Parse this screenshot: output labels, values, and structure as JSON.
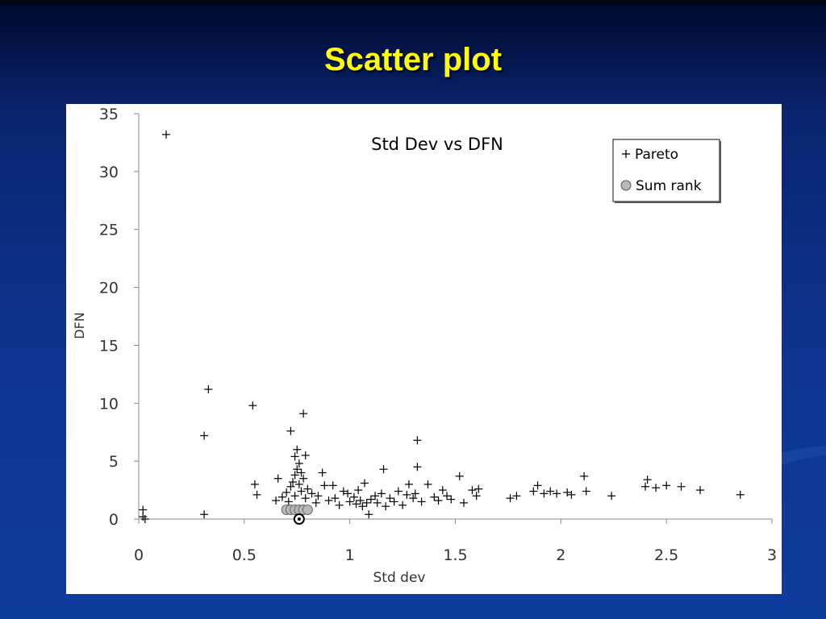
{
  "slide": {
    "title": "Scatter plot"
  },
  "chart_data": {
    "type": "scatter",
    "title": "Std Dev vs DFN",
    "xlabel": "Std dev",
    "ylabel": "DFN",
    "xlim": [
      0,
      3
    ],
    "ylim": [
      0,
      35
    ],
    "x_ticks": [
      0,
      0.5,
      1,
      1.5,
      2,
      2.5,
      3
    ],
    "x_tick_labels": [
      "0",
      "0.5",
      "1",
      "1.5",
      "2",
      "2.5",
      "3"
    ],
    "y_ticks": [
      0,
      5,
      10,
      15,
      20,
      25,
      30,
      35
    ],
    "y_tick_labels": [
      "0",
      "5",
      "10",
      "15",
      "20",
      "25",
      "30",
      "35"
    ],
    "grid": false,
    "legend_position": "top-right",
    "series": [
      {
        "name": "Pareto",
        "marker": "plus",
        "color": "#000000",
        "points": [
          [
            0.13,
            33.2
          ],
          [
            0.33,
            11.2
          ],
          [
            0.31,
            7.2
          ],
          [
            0.54,
            9.8
          ],
          [
            0.78,
            9.1
          ],
          [
            0.72,
            7.6
          ],
          [
            0.02,
            0.8
          ],
          [
            0.02,
            0.2
          ],
          [
            0.03,
            0.0
          ],
          [
            0.31,
            0.4
          ],
          [
            1.32,
            6.8
          ],
          [
            1.32,
            4.5
          ],
          [
            0.75,
            6.0
          ],
          [
            0.74,
            5.4
          ],
          [
            0.79,
            5.5
          ],
          [
            0.76,
            4.8
          ],
          [
            0.75,
            4.3
          ],
          [
            0.77,
            4.0
          ],
          [
            0.74,
            3.8
          ],
          [
            0.78,
            3.5
          ],
          [
            0.73,
            3.2
          ],
          [
            0.76,
            3.0
          ],
          [
            0.72,
            2.8
          ],
          [
            0.8,
            2.6
          ],
          [
            0.77,
            2.4
          ],
          [
            0.82,
            2.2
          ],
          [
            0.74,
            2.0
          ],
          [
            0.79,
            1.8
          ],
          [
            0.7,
            2.3
          ],
          [
            0.68,
            1.9
          ],
          [
            0.66,
            3.5
          ],
          [
            0.55,
            3.0
          ],
          [
            0.56,
            2.1
          ],
          [
            0.65,
            1.6
          ],
          [
            0.71,
            1.5
          ],
          [
            0.84,
            1.4
          ],
          [
            0.87,
            4.0
          ],
          [
            0.85,
            2.0
          ],
          [
            0.88,
            2.9
          ],
          [
            0.9,
            1.6
          ],
          [
            0.92,
            2.9
          ],
          [
            0.93,
            1.8
          ],
          [
            0.95,
            1.2
          ],
          [
            0.97,
            2.4
          ],
          [
            0.99,
            2.2
          ],
          [
            1.0,
            1.5
          ],
          [
            1.02,
            1.9
          ],
          [
            1.03,
            1.3
          ],
          [
            1.04,
            2.5
          ],
          [
            1.05,
            1.6
          ],
          [
            1.06,
            1.1
          ],
          [
            1.07,
            3.1
          ],
          [
            1.08,
            1.4
          ],
          [
            1.09,
            0.4
          ],
          [
            1.1,
            1.7
          ],
          [
            1.12,
            2.0
          ],
          [
            1.13,
            1.4
          ],
          [
            1.15,
            2.2
          ],
          [
            1.16,
            4.3
          ],
          [
            1.17,
            1.1
          ],
          [
            1.19,
            1.8
          ],
          [
            1.21,
            1.5
          ],
          [
            1.23,
            2.4
          ],
          [
            1.25,
            1.2
          ],
          [
            1.27,
            2.1
          ],
          [
            1.28,
            3.0
          ],
          [
            1.3,
            1.8
          ],
          [
            1.31,
            2.2
          ],
          [
            1.34,
            1.5
          ],
          [
            1.37,
            3.0
          ],
          [
            1.4,
            1.9
          ],
          [
            1.42,
            1.6
          ],
          [
            1.44,
            2.5
          ],
          [
            1.46,
            2.0
          ],
          [
            1.48,
            1.7
          ],
          [
            1.52,
            3.7
          ],
          [
            1.54,
            1.4
          ],
          [
            1.58,
            2.5
          ],
          [
            1.6,
            2.0
          ],
          [
            1.61,
            2.6
          ],
          [
            1.76,
            1.8
          ],
          [
            1.79,
            2.0
          ],
          [
            1.87,
            2.4
          ],
          [
            1.89,
            2.9
          ],
          [
            1.92,
            2.2
          ],
          [
            1.95,
            2.4
          ],
          [
            1.98,
            2.2
          ],
          [
            2.03,
            2.3
          ],
          [
            2.05,
            2.1
          ],
          [
            2.11,
            3.7
          ],
          [
            2.12,
            2.4
          ],
          [
            2.24,
            2.0
          ],
          [
            2.4,
            2.8
          ],
          [
            2.41,
            3.4
          ],
          [
            2.45,
            2.7
          ],
          [
            2.5,
            2.9
          ],
          [
            2.57,
            2.8
          ],
          [
            2.66,
            2.5
          ],
          [
            2.85,
            2.1
          ]
        ]
      },
      {
        "name": "Sum rank",
        "marker": "circle",
        "color": "#b8b8b8",
        "points": [
          [
            0.7,
            0.8
          ],
          [
            0.72,
            0.8
          ],
          [
            0.74,
            0.8
          ],
          [
            0.76,
            0.8
          ],
          [
            0.78,
            0.8
          ],
          [
            0.8,
            0.8
          ],
          [
            0.76,
            0.0
          ]
        ]
      }
    ]
  }
}
